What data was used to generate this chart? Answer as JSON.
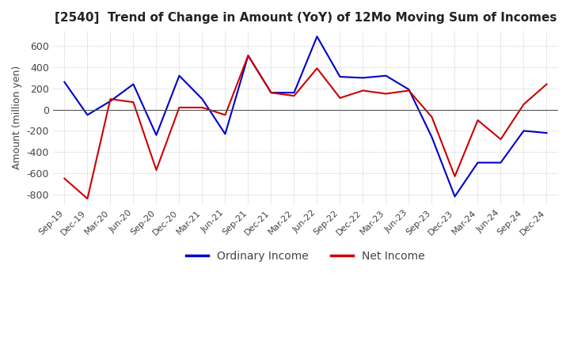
{
  "title": "[2540]  Trend of Change in Amount (YoY) of 12Mo Moving Sum of Incomes",
  "ylabel": "Amount (million yen)",
  "background_color": "#ffffff",
  "grid_color": "#aaaaaa",
  "x_labels": [
    "Sep-19",
    "Dec-19",
    "Mar-20",
    "Jun-20",
    "Sep-20",
    "Dec-20",
    "Mar-21",
    "Jun-21",
    "Sep-21",
    "Dec-21",
    "Mar-22",
    "Jun-22",
    "Sep-22",
    "Dec-22",
    "Mar-23",
    "Jun-23",
    "Sep-23",
    "Dec-23",
    "Mar-24",
    "Jun-24",
    "Sep-24",
    "Dec-24"
  ],
  "ordinary_income": [
    260,
    -50,
    80,
    240,
    -240,
    320,
    100,
    -230,
    510,
    160,
    160,
    690,
    310,
    300,
    320,
    190,
    -260,
    -820,
    -500,
    -500,
    -200,
    -220
  ],
  "net_income": [
    -650,
    -840,
    100,
    70,
    -570,
    20,
    20,
    -50,
    510,
    160,
    130,
    390,
    110,
    180,
    150,
    180,
    -70,
    -630,
    -100,
    -280,
    50,
    240
  ],
  "ordinary_color": "#0000cc",
  "net_color": "#cc0000",
  "ylim": [
    -900,
    750
  ],
  "yticks": [
    -800,
    -600,
    -400,
    -200,
    0,
    200,
    400,
    600
  ]
}
